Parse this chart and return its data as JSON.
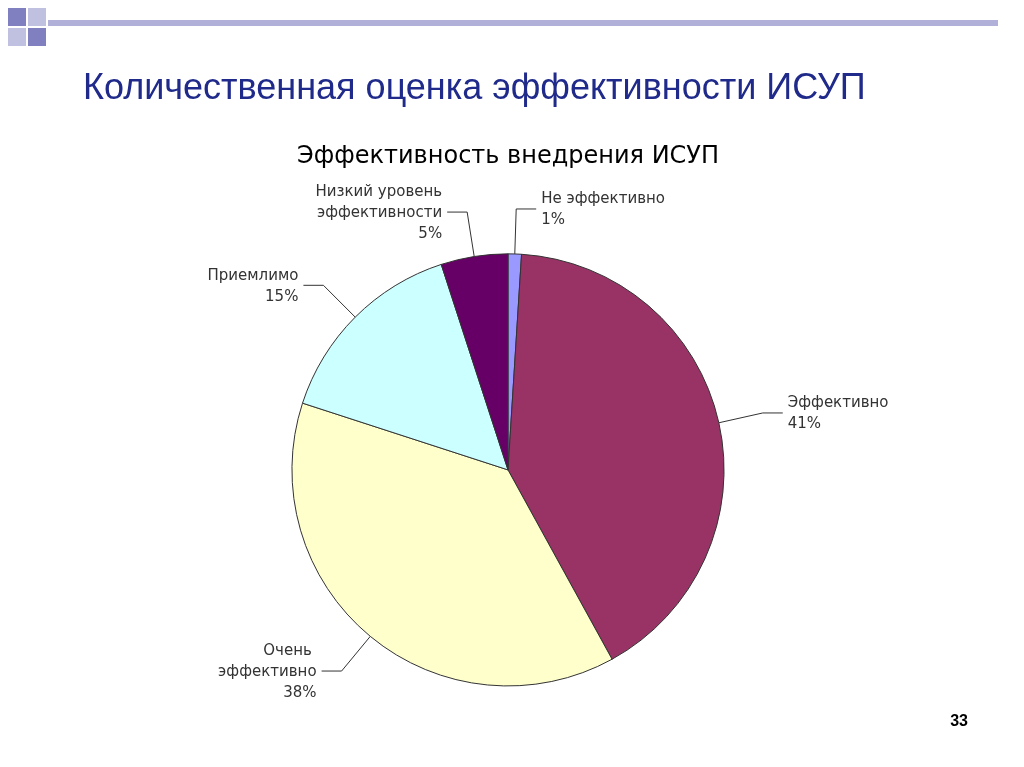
{
  "chart_data": {
    "type": "pie",
    "title": "Количественная оценка эффективности ИСУП",
    "subtitle": "Эффективность внедрения ИСУП",
    "categories": [
      "Не эффективно",
      "Эффективно",
      "Очень эффективно",
      "Приемлимо",
      "Низкий уровень эффективности"
    ],
    "values": [
      1,
      41,
      38,
      15,
      5
    ],
    "colors": [
      "#9999ff",
      "#993366",
      "#ffffcc",
      "#ccffff",
      "#660066"
    ],
    "value_labels": [
      "1%",
      "41%",
      "38%",
      "15%",
      "5%"
    ],
    "legend": false,
    "annotations": [
      "33"
    ]
  }
}
